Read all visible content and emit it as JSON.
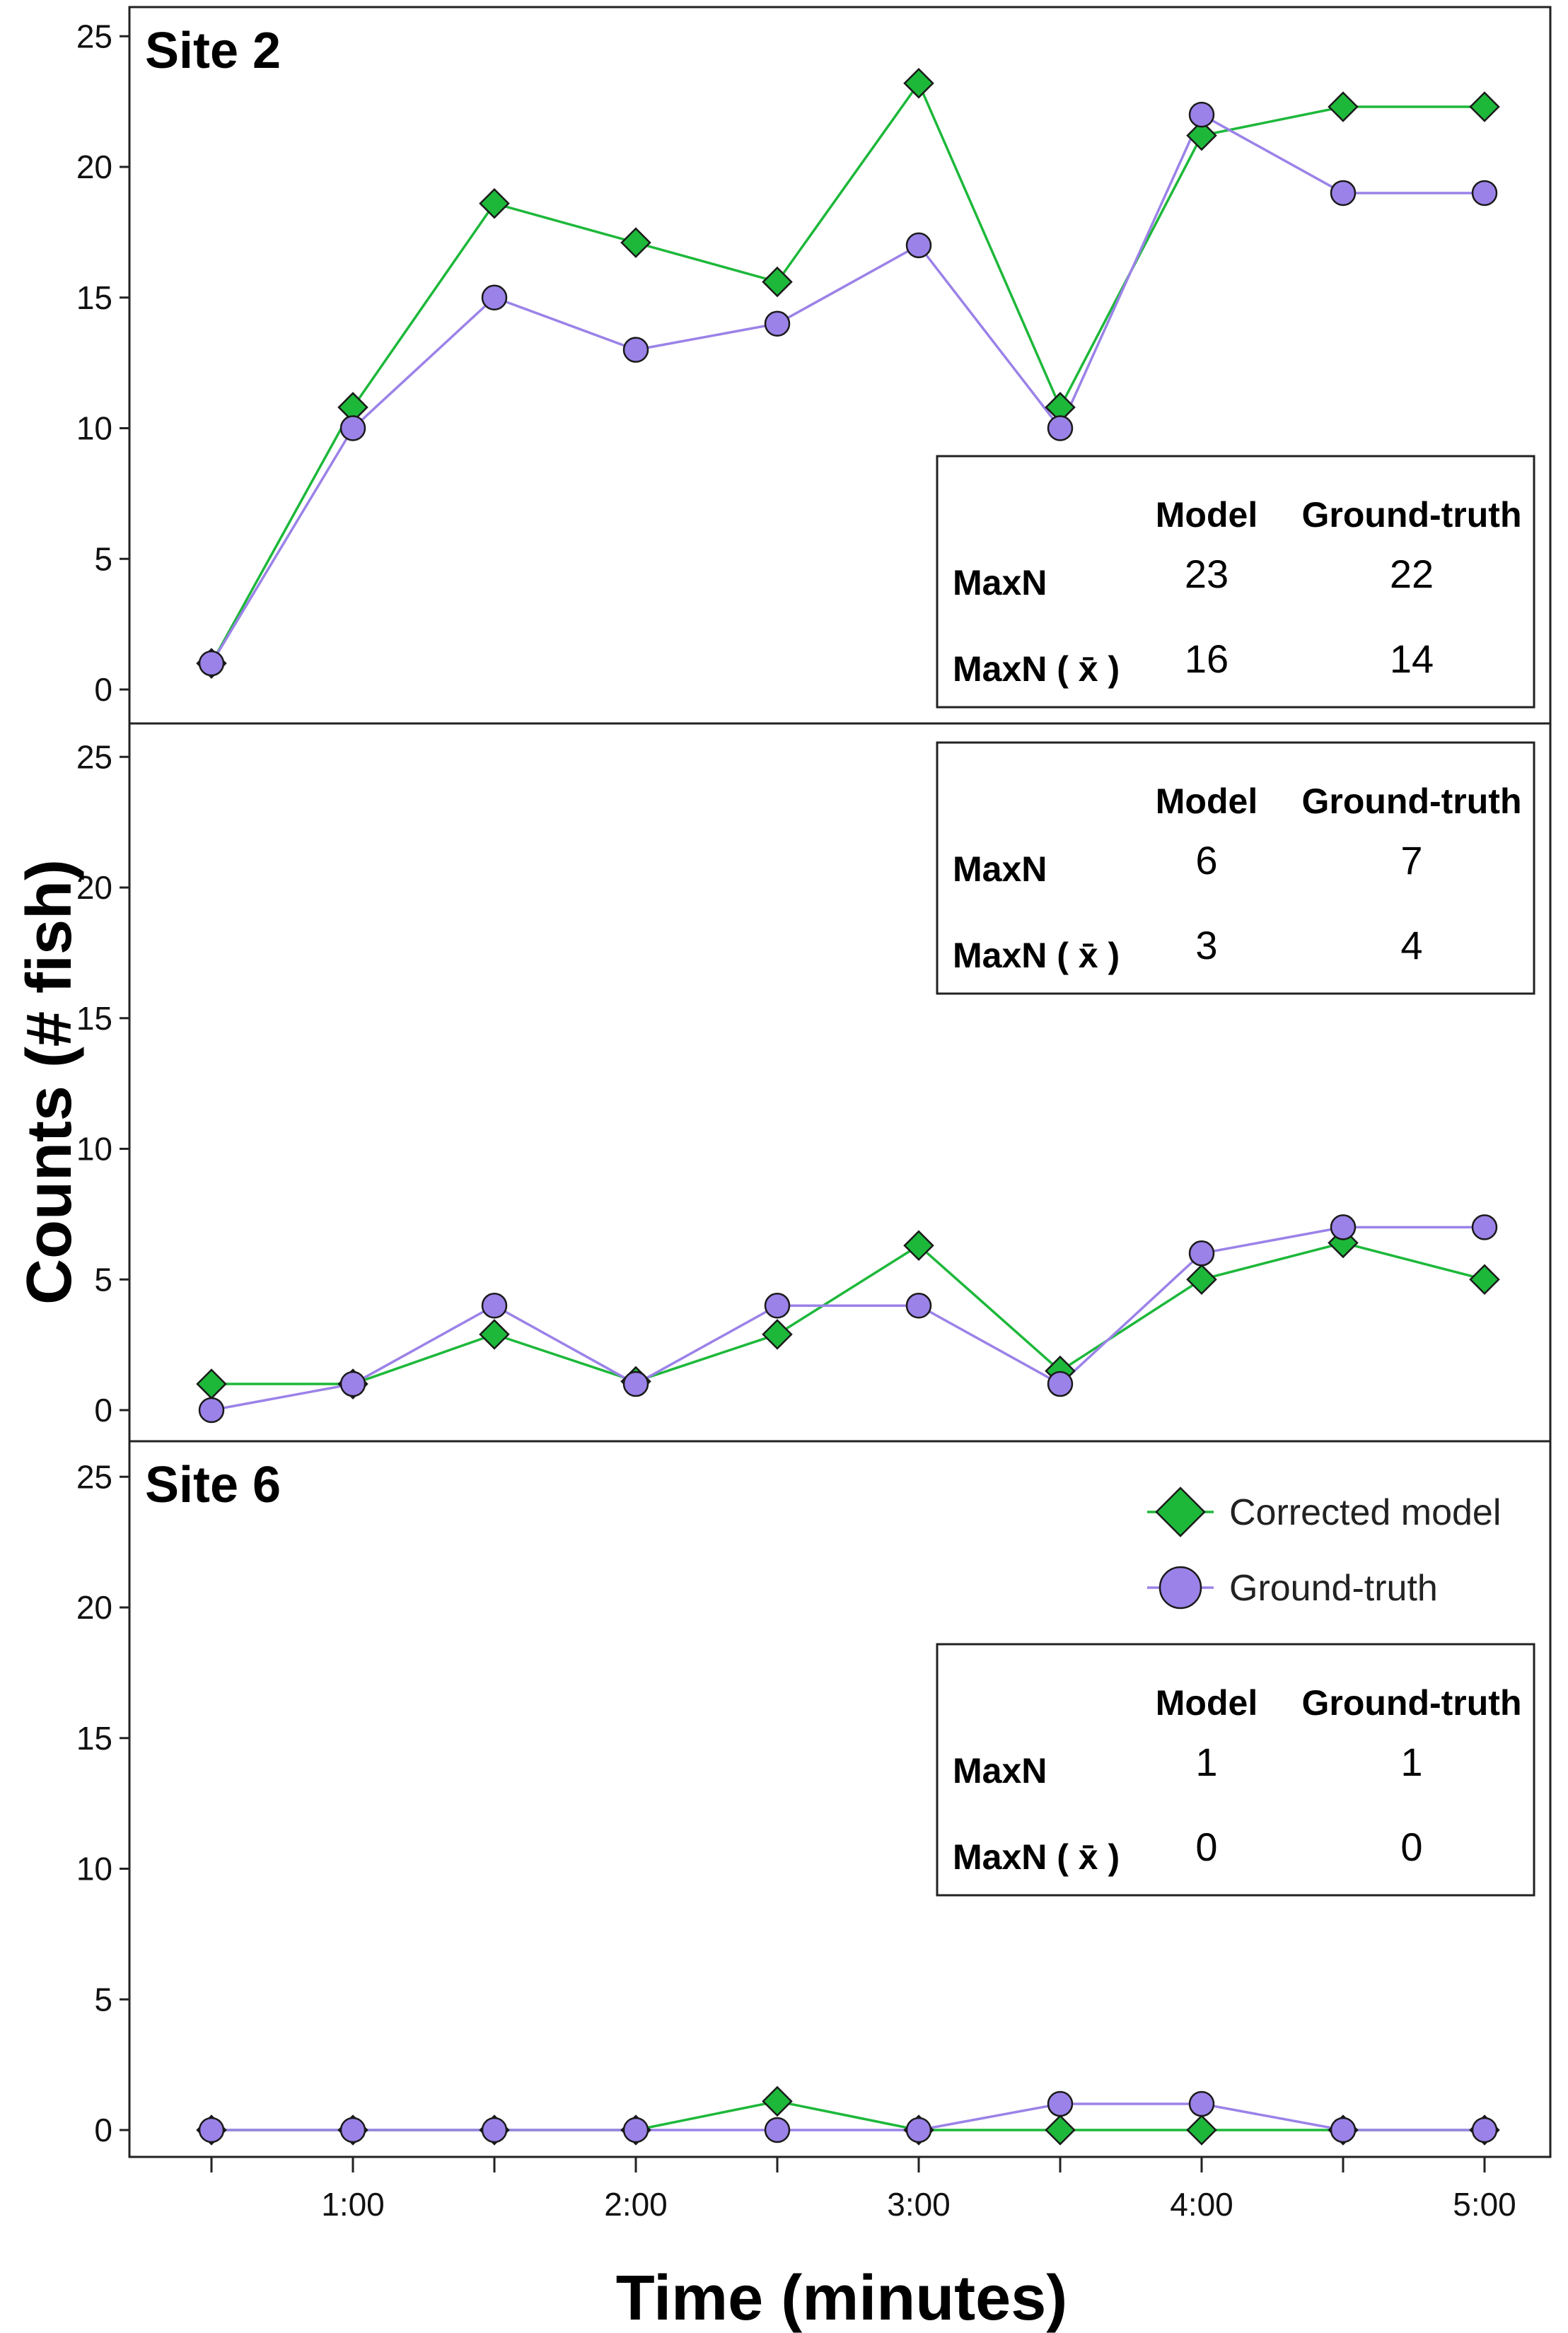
{
  "chart_data": {
    "type": "line",
    "ylabel": "Counts (# fish)",
    "xlabel": "Time (minutes)",
    "x": [
      0.5,
      1.0,
      1.5,
      2.0,
      2.5,
      3.0,
      3.5,
      4.0,
      4.5,
      5.0
    ],
    "xticks": [
      1.0,
      2.0,
      3.0,
      4.0,
      5.0
    ],
    "xtick_labels": [
      "1:00",
      "2:00",
      "3:00",
      "4:00",
      "5:00"
    ],
    "xlim": [
      0.0,
      5.2
    ],
    "ylim": [
      0,
      26
    ],
    "yticks": [
      0,
      5,
      10,
      15,
      20,
      25
    ],
    "ytick_labels": [
      "0",
      "5",
      "10",
      "15",
      "20",
      "25"
    ],
    "legend": {
      "placement": "top-right of bottom panel",
      "entries": [
        {
          "label": "Corrected model",
          "marker": "diamond",
          "color": "#1db83a"
        },
        {
          "label": "Ground-truth",
          "marker": "circle",
          "color": "#9b82e8"
        }
      ]
    },
    "series_colors": {
      "model": "#1db83a",
      "truth": "#9b82e8"
    },
    "panels": [
      {
        "title": "Site 2",
        "series": [
          {
            "name": "Corrected model",
            "values": [
              1,
              10.8,
              18.6,
              17.1,
              15.6,
              23.2,
              10.8,
              21.2,
              22.3,
              22.3
            ]
          },
          {
            "name": "Ground-truth",
            "values": [
              1,
              10,
              15,
              13,
              14,
              17,
              10,
              22,
              19,
              19
            ]
          }
        ],
        "stats": {
          "headers": [
            "Model",
            "Ground-truth"
          ],
          "rows": [
            {
              "label": "MaxN",
              "values": [
                "23",
                "22"
              ]
            },
            {
              "label": "MaxN ( x̄ )",
              "values": [
                "16",
                "14"
              ]
            }
          ]
        }
      },
      {
        "title": "",
        "series": [
          {
            "name": "Corrected model",
            "values": [
              1,
              1,
              2.9,
              1.1,
              2.9,
              6.3,
              1.5,
              5,
              6.4,
              5
            ]
          },
          {
            "name": "Ground-truth",
            "values": [
              0,
              1,
              4,
              1,
              4,
              4,
              1,
              6,
              7,
              7
            ]
          }
        ],
        "stats": {
          "headers": [
            "Model",
            "Ground-truth"
          ],
          "rows": [
            {
              "label": "MaxN",
              "values": [
                "6",
                "7"
              ]
            },
            {
              "label": "MaxN ( x̄ )",
              "values": [
                "3",
                "4"
              ]
            }
          ]
        }
      },
      {
        "title": "Site 6",
        "series": [
          {
            "name": "Corrected model",
            "values": [
              0,
              0,
              0,
              0,
              1.1,
              0,
              0,
              0,
              0,
              0
            ]
          },
          {
            "name": "Ground-truth",
            "values": [
              0,
              0,
              0,
              0,
              0,
              0,
              1,
              1,
              0,
              0
            ]
          }
        ],
        "stats": {
          "headers": [
            "Model",
            "Ground-truth"
          ],
          "rows": [
            {
              "label": "MaxN",
              "values": [
                "1",
                "1"
              ]
            },
            {
              "label": "MaxN ( x̄ )",
              "values": [
                "0",
                "0"
              ]
            }
          ]
        }
      }
    ]
  }
}
